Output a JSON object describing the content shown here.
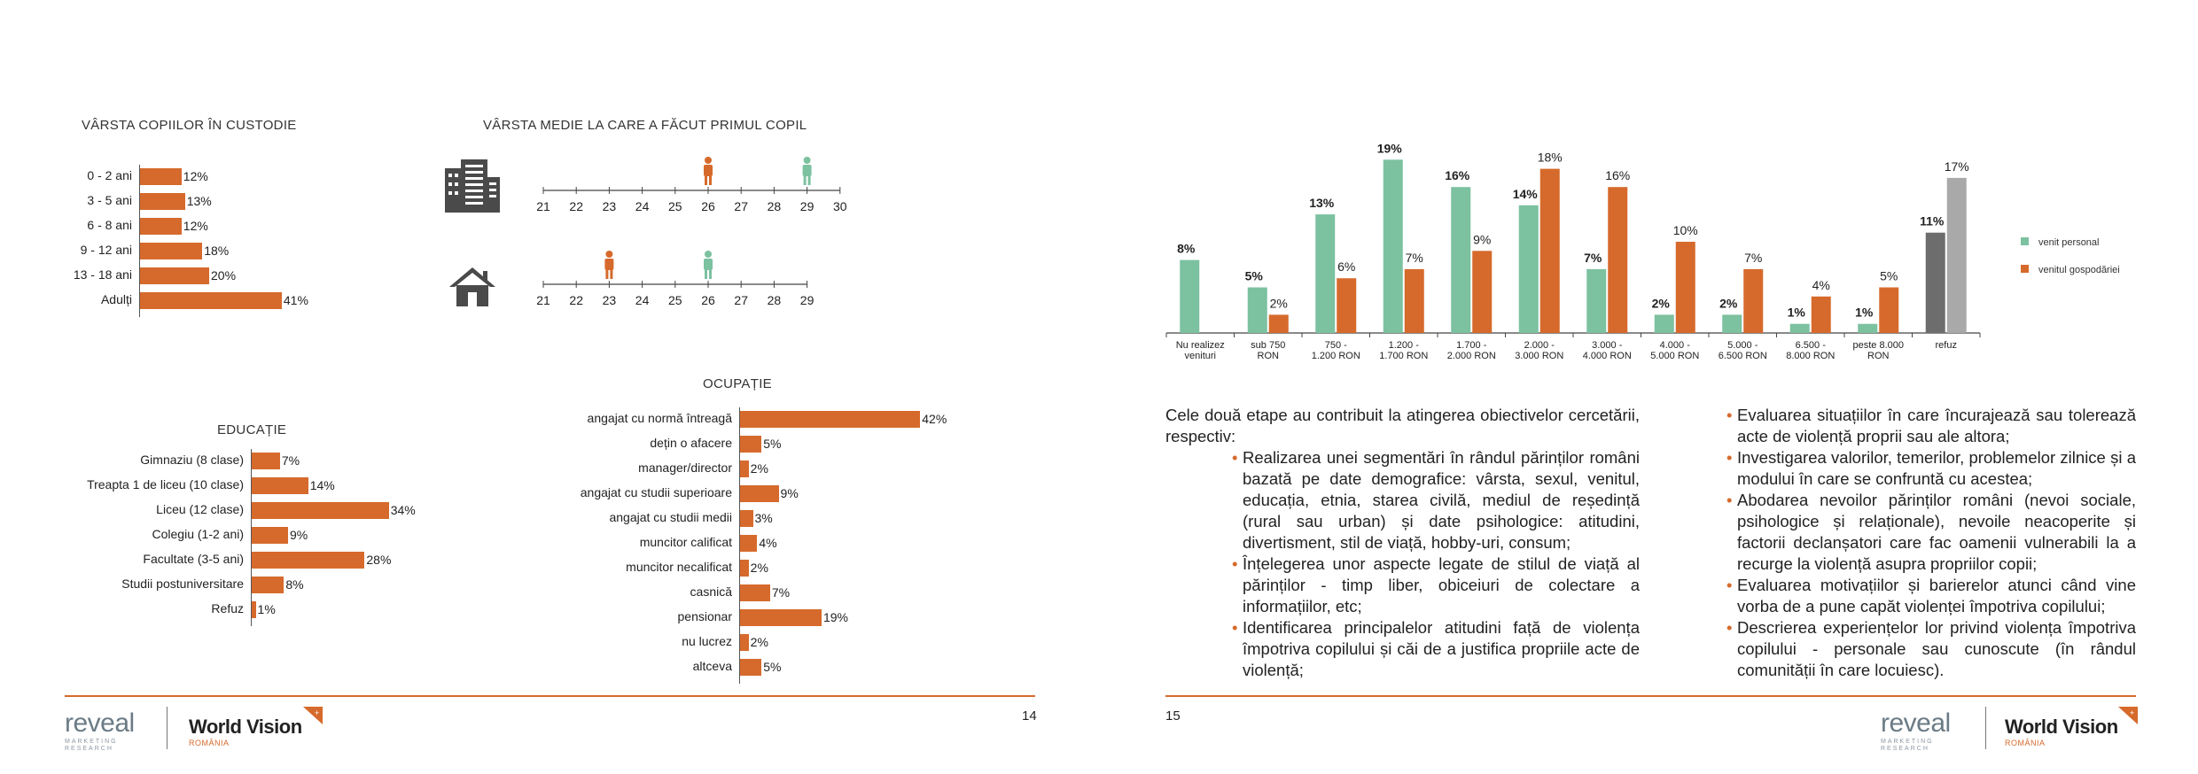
{
  "colors": {
    "orange": "#d66a2c",
    "green": "#7cc1a0",
    "dark_gray": "#6d6d6d",
    "light_gray": "#a9a9a9"
  },
  "custody": {
    "title": "VÂRSTA COPIILOR ÎN CUSTODIE",
    "rows": [
      {
        "label": "0 - 2 ani",
        "value": 12,
        "text": "12%"
      },
      {
        "label": "3 - 5 ani",
        "value": 13,
        "text": "13%"
      },
      {
        "label": "6 - 8 ani",
        "value": 12,
        "text": "12%"
      },
      {
        "label": "9 - 12 ani",
        "value": 18,
        "text": "18%"
      },
      {
        "label": "13 - 18 ani",
        "value": 20,
        "text": "20%"
      },
      {
        "label": "Adulți",
        "value": 41,
        "text": "41%"
      }
    ]
  },
  "first_child": {
    "title": "VÂRSTA MEDIE LA CARE A FĂCUT PRIMUL COPIL",
    "urban": {
      "icon": "building-icon",
      "ticks": [
        "21",
        "22",
        "23",
        "24",
        "25",
        "26",
        "27",
        "28",
        "29",
        "30"
      ],
      "female_age": 26,
      "male_age": 29
    },
    "rural": {
      "icon": "house-icon",
      "ticks": [
        "21",
        "22",
        "23",
        "24",
        "25",
        "26",
        "27",
        "28",
        "29"
      ],
      "female_age": 23,
      "male_age": 26
    }
  },
  "education": {
    "title": "EDUCAȚIE",
    "rows": [
      {
        "label": "Gimnaziu (8 clase)",
        "value": 7,
        "text": "7%"
      },
      {
        "label": "Treapta 1 de liceu (10 clase)",
        "value": 14,
        "text": "14%"
      },
      {
        "label": "Liceu (12 clase)",
        "value": 34,
        "text": "34%"
      },
      {
        "label": "Colegiu (1-2 ani)",
        "value": 9,
        "text": "9%"
      },
      {
        "label": "Facultate (3-5 ani)",
        "value": 28,
        "text": "28%"
      },
      {
        "label": "Studii postuniversitare",
        "value": 8,
        "text": "8%"
      },
      {
        "label": "Refuz",
        "value": 1,
        "text": "1%"
      }
    ]
  },
  "occupation": {
    "title": "OCUPAȚIE",
    "rows": [
      {
        "label": "angajat cu normă întreagă",
        "value": 42,
        "text": "42%"
      },
      {
        "label": "dețin o afacere",
        "value": 5,
        "text": "5%"
      },
      {
        "label": "manager/director",
        "value": 2,
        "text": "2%"
      },
      {
        "label": "angajat cu studii superioare",
        "value": 9,
        "text": "9%"
      },
      {
        "label": "angajat cu studii medii",
        "value": 3,
        "text": "3%"
      },
      {
        "label": "muncitor calificat",
        "value": 4,
        "text": "4%"
      },
      {
        "label": "muncitor necalificat",
        "value": 2,
        "text": "2%"
      },
      {
        "label": "casnică",
        "value": 7,
        "text": "7%"
      },
      {
        "label": "pensionar",
        "value": 19,
        "text": "19%"
      },
      {
        "label": "nu lucrez",
        "value": 2,
        "text": "2%"
      },
      {
        "label": "altceva",
        "value": 5,
        "text": "5%"
      }
    ]
  },
  "chart_data": {
    "type": "bar",
    "categories": [
      "Nu realizez venituri",
      "sub 750 RON",
      "750 - 1.200 RON",
      "1.200 - 1.700 RON",
      "1.700 - 2.000 RON",
      "2.000 - 3.000 RON",
      "3.000 - 4.000 RON",
      "4.000 - 5.000 RON",
      "5.000 - 6.500 RON",
      "6.500 - 8.000 RON",
      "peste 8.000 RON",
      "refuz"
    ],
    "series": [
      {
        "name": "venit personal",
        "values": [
          8,
          5,
          13,
          19,
          16,
          14,
          7,
          2,
          2,
          1,
          1,
          11
        ],
        "labels": [
          "8%",
          "5%",
          "13%",
          "19%",
          "16%",
          "14%",
          "7%",
          "2%",
          "2%",
          "1%",
          "1%",
          "11%"
        ]
      },
      {
        "name": "venitul gospodăriei",
        "values": [
          null,
          2,
          6,
          7,
          9,
          18,
          16,
          10,
          7,
          4,
          5,
          17
        ],
        "labels": [
          "",
          "2%",
          "6%",
          "7%",
          "9%",
          "18%",
          "16%",
          "10%",
          "7%",
          "4%",
          "5%",
          "17%"
        ]
      }
    ],
    "ylim": [
      0,
      20
    ],
    "legend": "right"
  },
  "text": {
    "intro": "Cele două etape au contribuit la atingerea obiectivelor cercetării, respectiv:",
    "left_bullets": [
      "Realizarea unei segmentări în rândul părinților români bazată pe date demografice: vârsta, sexul, venitul, educația, etnia, starea civilă, mediul de reședință (rural sau urban) și date psihologice: atitudini, divertisment, stil de viață, hobby-uri, consum;",
      "Înțelegerea unor aspecte legate de stilul de viață al părinților - timp liber, obiceiuri de colectare a informațiilor, etc;",
      "Identificarea principalelor atitudini față de violența împotriva copilului și căi de a justifica propriile acte de violență;"
    ],
    "right_bullets": [
      "Evaluarea situațiilor în care încurajează sau tolerează acte de violență proprii sau ale altora;",
      "Investigarea valorilor, temerilor, problemelor zilnice și a modului în care se confruntă cu acestea;",
      "Abodarea nevoilor părinților români (nevoi sociale, psihologice și relaționale), nevoile neacoperite și factorii declanșatori care fac oamenii vulnerabili la a recurge la violență asupra propriilor copii;",
      "Evaluarea motivațiilor și barierelor atunci când vine vorba de a pune capăt violenței împotriva copilului;",
      "Descrierea experiențelor lor privind violența împotriva copilului - personale sau cunoscute (în rândul comunității în care locuiesc)."
    ]
  },
  "footer": {
    "page_left": "14",
    "page_right": "15",
    "reveal": "reveal",
    "reveal_sub1": "MARKETING",
    "reveal_sub2": "RESEARCH",
    "wv": "World Vision",
    "wv_country": "ROMÂNIA"
  }
}
